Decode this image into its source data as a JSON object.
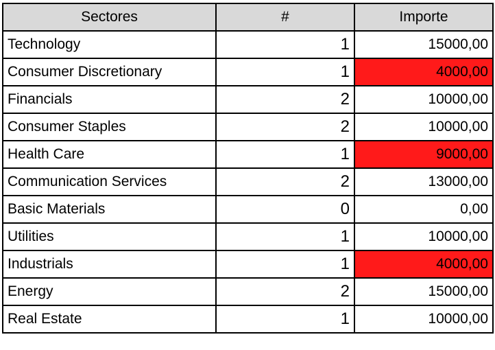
{
  "table": {
    "headers": {
      "sector": "Sectores",
      "count": "#",
      "amount": "Importe"
    },
    "rows": [
      {
        "sector": "Technology",
        "count": "1",
        "amount": "15000,00",
        "highlight": false
      },
      {
        "sector": "Consumer Discretionary",
        "count": "1",
        "amount": "4000,00",
        "highlight": true
      },
      {
        "sector": "Financials",
        "count": "2",
        "amount": "10000,00",
        "highlight": false
      },
      {
        "sector": "Consumer Staples",
        "count": "2",
        "amount": "10000,00",
        "highlight": false
      },
      {
        "sector": "Health Care",
        "count": "1",
        "amount": "9000,00",
        "highlight": true
      },
      {
        "sector": "Communication Services",
        "count": "2",
        "amount": "13000,00",
        "highlight": false
      },
      {
        "sector": "Basic Materials",
        "count": "0",
        "amount": "0,00",
        "highlight": false
      },
      {
        "sector": "Utilities",
        "count": "1",
        "amount": "10000,00",
        "highlight": false
      },
      {
        "sector": "Industrials",
        "count": "1",
        "amount": "4000,00",
        "highlight": true
      },
      {
        "sector": "Energy",
        "count": "2",
        "amount": "15000,00",
        "highlight": false
      },
      {
        "sector": "Real Estate",
        "count": "1",
        "amount": "10000,00",
        "highlight": false
      }
    ]
  },
  "colors": {
    "header_bg": "#d9d9d9",
    "highlight_bg": "#ff1a1a",
    "border": "#000000"
  }
}
